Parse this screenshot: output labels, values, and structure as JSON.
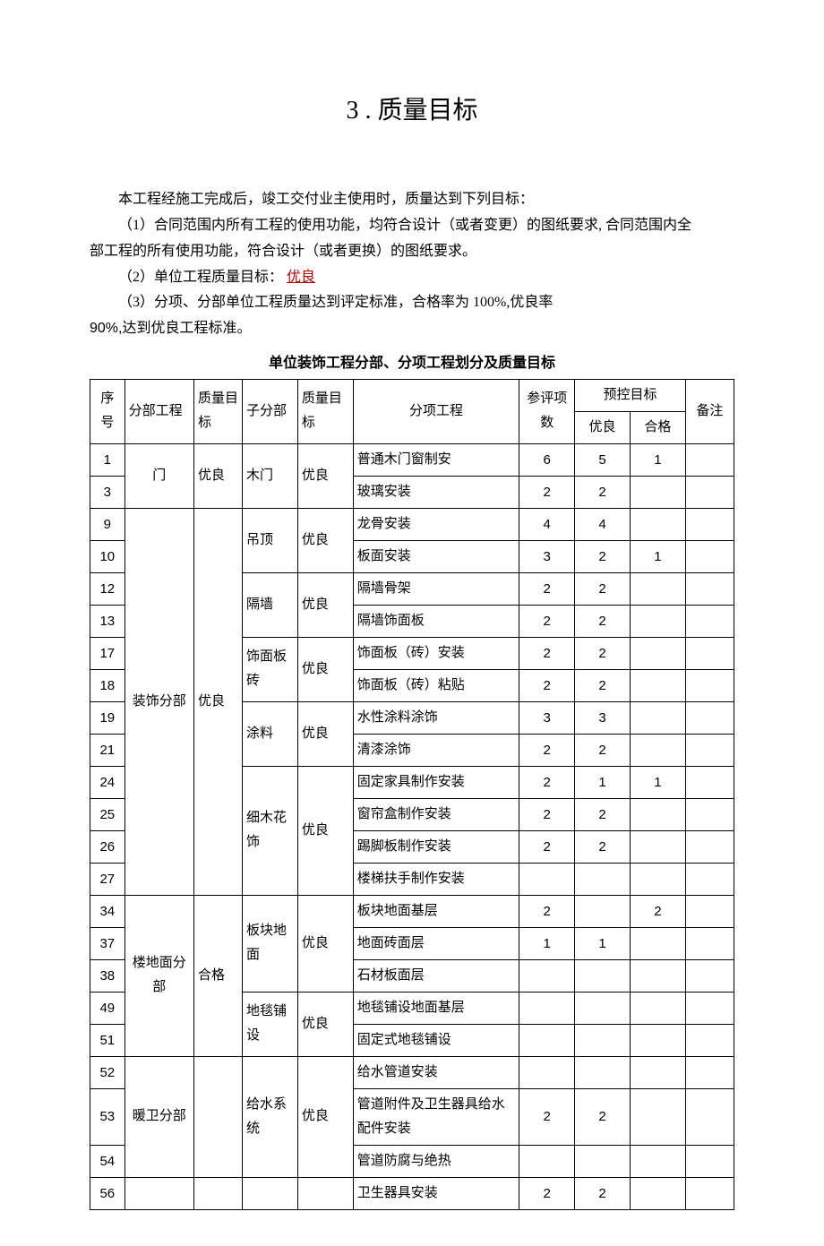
{
  "title": "3 . 质量目标",
  "intro": "本工程经施工完成后，竣工交付业主使用时，质量达到下列目标：",
  "p1a": "（1）合同范围内所有工程的使用功能，均符合设计（或者变更）的图纸要求, 合同范围内全",
  "p1b": "部工程的所有使用功能，符合设计（或者更换）的图纸要求。",
  "p2_label": "（2）单位工程质量目标： ",
  "p2_value": "优良",
  "p3a": "（3）分项、分部单位工程质量达到评定标准，合格率为 100%,优良率",
  "p3b_prefix": "90%,",
  "p3b_rest": "达到优良工程标准。",
  "table_title": "单位装饰工程分部、分项工程划分及质量目标",
  "headers": {
    "seq": "序号",
    "division": "分部工程",
    "q1": "质量目标",
    "subdiv": "子分部",
    "q2": "质量目标",
    "item": "分项工程",
    "count": "参评项数",
    "precontrol": "预控目标",
    "good": "优良",
    "pass": "合格",
    "remark": "备注"
  },
  "groups": [
    {
      "division": "门",
      "q1": "优良",
      "subgroups": [
        {
          "sub": "木门",
          "q2": "优良",
          "rows": [
            {
              "seq": "1",
              "item": "普通木门窗制安",
              "count": "6",
              "good": "5",
              "pass": "1"
            },
            {
              "seq": "3",
              "item": "玻璃安装",
              "count": "2",
              "good": "2",
              "pass": ""
            }
          ]
        }
      ]
    },
    {
      "division": "装饰分部",
      "q1": "优良",
      "subgroups": [
        {
          "sub": "吊顶",
          "q2": "优良",
          "rows": [
            {
              "seq": "9",
              "item": "龙骨安装",
              "count": "4",
              "good": "4",
              "pass": ""
            },
            {
              "seq": "10",
              "item": "板面安装",
              "count": "3",
              "good": "2",
              "pass": "1"
            }
          ]
        },
        {
          "sub": "隔墙",
          "q2": "优良",
          "rows": [
            {
              "seq": "12",
              "item": "隔墙骨架",
              "count": "2",
              "good": "2",
              "pass": ""
            },
            {
              "seq": "13",
              "item": "隔墙饰面板",
              "count": "2",
              "good": "2",
              "pass": ""
            }
          ]
        },
        {
          "sub": "饰面板砖",
          "q2": "优良",
          "rows": [
            {
              "seq": "17",
              "item": "饰面板（砖）安装",
              "count": "2",
              "good": "2",
              "pass": ""
            },
            {
              "seq": "18",
              "item": "饰面板（砖）粘贴",
              "count": "2",
              "good": "2",
              "pass": ""
            }
          ]
        },
        {
          "sub": "涂料",
          "q2": "优良",
          "rows": [
            {
              "seq": "19",
              "item": "水性涂料涂饰",
              "count": "3",
              "good": "3",
              "pass": ""
            },
            {
              "seq": "21",
              "item": "清漆涂饰",
              "count": "2",
              "good": "2",
              "pass": ""
            }
          ]
        },
        {
          "sub": "细木花饰",
          "q2": "优良",
          "rows": [
            {
              "seq": "24",
              "item": "固定家具制作安装",
              "count": "2",
              "good": "1",
              "pass": "1"
            },
            {
              "seq": "25",
              "item": "窗帘盒制作安装",
              "count": "2",
              "good": "2",
              "pass": ""
            },
            {
              "seq": "26",
              "item": "踢脚板制作安装",
              "count": "2",
              "good": "2",
              "pass": ""
            },
            {
              "seq": "27",
              "item": "楼梯扶手制作安装",
              "count": "",
              "good": "",
              "pass": ""
            }
          ]
        }
      ]
    },
    {
      "division": "楼地面分部",
      "q1": "合格",
      "subgroups": [
        {
          "sub": "板块地面",
          "q2": "优良",
          "rows": [
            {
              "seq": "34",
              "item": "板块地面基层",
              "count": "2",
              "good": "",
              "pass": "2"
            },
            {
              "seq": "37",
              "item": "地面砖面层",
              "count": "1",
              "good": "1",
              "pass": ""
            },
            {
              "seq": "38",
              "item": "石材板面层",
              "count": "",
              "good": "",
              "pass": ""
            }
          ]
        },
        {
          "sub": "地毯铺设",
          "q2": "优良",
          "rows": [
            {
              "seq": "49",
              "item": "地毯铺设地面基层",
              "count": "",
              "good": "",
              "pass": ""
            },
            {
              "seq": "51",
              "item": "固定式地毯铺设",
              "count": "",
              "good": "",
              "pass": ""
            }
          ]
        }
      ]
    },
    {
      "division": "暖卫分部",
      "q1": "",
      "subgroups": [
        {
          "sub": "给水系统",
          "q2": "优良",
          "rows": [
            {
              "seq": "52",
              "item": "给水管道安装",
              "count": "",
              "good": "",
              "pass": ""
            },
            {
              "seq": "53",
              "item": "管道附件及卫生器具给水配件安装",
              "count": "2",
              "good": "2",
              "pass": ""
            },
            {
              "seq": "54",
              "item": "管道防腐与绝热",
              "count": "",
              "good": "",
              "pass": ""
            }
          ]
        }
      ]
    },
    {
      "division": "",
      "q1": "",
      "subgroups": [
        {
          "sub": "",
          "q2": "",
          "rows": [
            {
              "seq": "56",
              "item": "卫生器具安装",
              "count": "2",
              "good": "2",
              "pass": ""
            }
          ]
        }
      ]
    }
  ]
}
